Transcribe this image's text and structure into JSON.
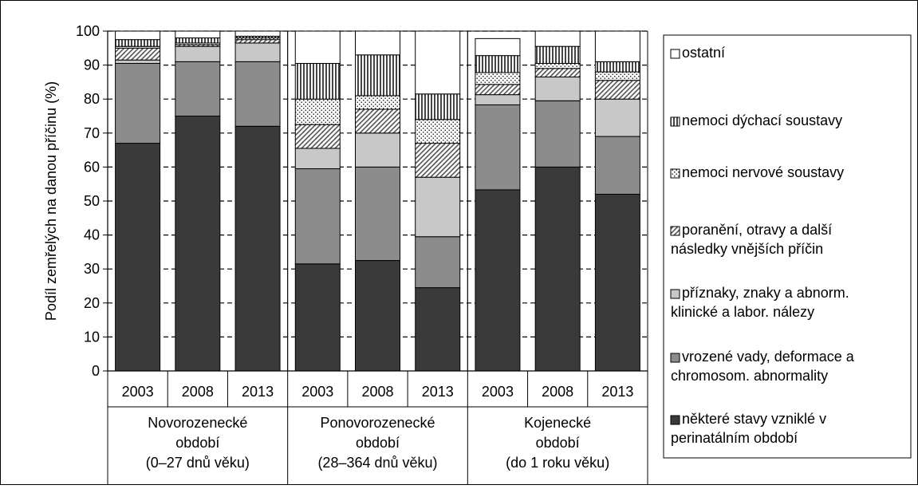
{
  "chart_data": {
    "type": "bar",
    "stacked": true,
    "ylabel": "Podíl zemřelých na danou příčinu (%)",
    "ylim": [
      0,
      100
    ],
    "yticks": [
      0,
      10,
      20,
      30,
      40,
      50,
      60,
      70,
      80,
      90,
      100
    ],
    "grid": true,
    "legend_position": "right",
    "categories": [
      "2003",
      "2008",
      "2013",
      "2003",
      "2008",
      "2013",
      "2003",
      "2008",
      "2013"
    ],
    "groups": [
      {
        "lines": [
          "Novorozenecké",
          "období",
          "(0–27 dnů věku)"
        ],
        "span": [
          0,
          2
        ]
      },
      {
        "lines": [
          "Ponovorozenecké",
          "období",
          "(28–364 dnů věku)"
        ],
        "span": [
          3,
          5
        ]
      },
      {
        "lines": [
          "Kojenecké",
          "období",
          "(do 1 roku věku)"
        ],
        "span": [
          6,
          8
        ]
      }
    ],
    "series": [
      {
        "name": "některé stavy vzniklé v perinatálním období",
        "lines": [
          "některé stavy vzniklé v",
          "perinatálním období"
        ],
        "pattern": "solid-dark",
        "color": "#3a3a3a",
        "values": [
          67,
          75,
          72,
          31.5,
          32.5,
          24.5,
          53.3,
          60,
          52
        ]
      },
      {
        "name": "vrozené vady, deformace a chromosom. abnormality",
        "lines": [
          "vrozené vady, deformace a",
          "chromosom. abnormality"
        ],
        "pattern": "solid-mid",
        "color": "#8c8c8c",
        "values": [
          23.5,
          16,
          19,
          28,
          27.5,
          15,
          25,
          19.5,
          17
        ]
      },
      {
        "name": "příznaky, znaky a abnorm. klinické a labor. nálezy",
        "lines": [
          "příznaky, znaky a abnorm.",
          "klinické a labor. nálezy"
        ],
        "pattern": "solid-light",
        "color": "#c8c8c8",
        "values": [
          1,
          4.5,
          5.5,
          6,
          10,
          17.5,
          3,
          7,
          11
        ]
      },
      {
        "name": "poranění, otravy a další následky vnějších příčin",
        "lines": [
          "poranění, otravy a další",
          "následky vnějších příčin"
        ],
        "pattern": "diagonal",
        "values": [
          3.5,
          0.5,
          1,
          7,
          7,
          10,
          3,
          2.5,
          5.5
        ]
      },
      {
        "name": "nemoci nervové soustavy",
        "lines": [
          "nemoci nervové soustavy"
        ],
        "pattern": "dots",
        "values": [
          0.5,
          0.5,
          0.5,
          7.5,
          4,
          7,
          3.5,
          1.5,
          2.5
        ]
      },
      {
        "name": "nemoci dýchací soustavy",
        "lines": [
          "nemoci dýchací soustavy"
        ],
        "pattern": "vertical",
        "values": [
          2,
          1.5,
          0.5,
          10.5,
          12,
          7.5,
          5,
          5,
          3
        ]
      },
      {
        "name": "ostatní",
        "lines": [
          "ostatní"
        ],
        "pattern": "white",
        "color": "#ffffff",
        "values": [
          2.5,
          2,
          1.5,
          9.5,
          7,
          18.5,
          5,
          4.5,
          9
        ]
      }
    ]
  }
}
